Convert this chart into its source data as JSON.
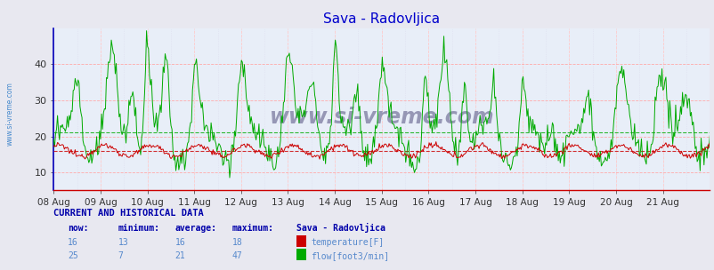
{
  "title": "Sava - Radovljica",
  "title_color": "#0000cc",
  "title_fontsize": 11,
  "bg_color": "#e8e8f0",
  "plot_bg_color": "#e8eef8",
  "x_labels": [
    "08 Aug",
    "09 Aug",
    "10 Aug",
    "11 Aug",
    "12 Aug",
    "13 Aug",
    "14 Aug",
    "15 Aug",
    "16 Aug",
    "17 Aug",
    "18 Aug",
    "19 Aug",
    "20 Aug",
    "21 Aug"
  ],
  "ylim": [
    5,
    50
  ],
  "yticks": [
    10,
    20,
    30,
    40
  ],
  "grid_h_color": "#ffaaaa",
  "grid_v_color": "#ffcccc",
  "grid_minor_color": "#ddddee",
  "temp_color": "#cc0000",
  "flow_color": "#00aa00",
  "avg_temp_val": 16,
  "avg_flow_val": 21,
  "watermark": "www.si-vreme.com",
  "watermark_color": "#8888aa",
  "sidebar_text": "www.si-vreme.com",
  "sidebar_color": "#4488cc",
  "left_spine_color": "#0000bb",
  "bottom_spine_color": "#cc0000",
  "table_header": "CURRENT AND HISTORICAL DATA",
  "table_cols": [
    "now:",
    "minimum:",
    "average:",
    "maximum:",
    "Sava - Radovljica"
  ],
  "temp_row": [
    "16",
    "13",
    "16",
    "18",
    "temperature[F]"
  ],
  "flow_row": [
    "25",
    "7",
    "21",
    "47",
    "flow[foot3/min]"
  ],
  "temp_swatch_color": "#cc0000",
  "flow_swatch_color": "#00aa00",
  "num_points": 672
}
